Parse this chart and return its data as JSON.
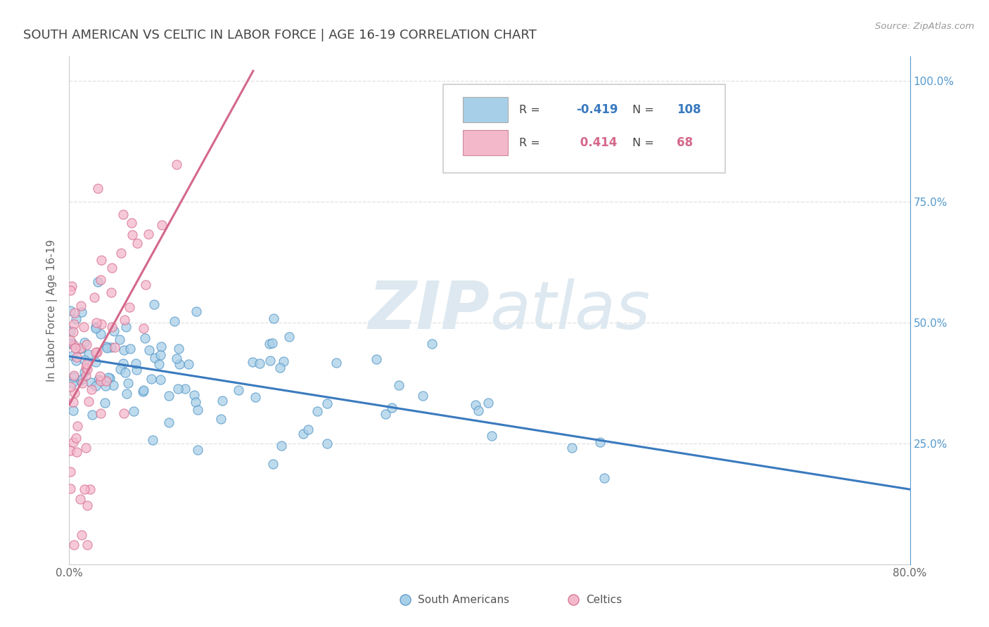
{
  "title": "SOUTH AMERICAN VS CELTIC IN LABOR FORCE | AGE 16-19 CORRELATION CHART",
  "source": "Source: ZipAtlas.com",
  "ylabel": "In Labor Force | Age 16-19",
  "xmin": 0.0,
  "xmax": 0.8,
  "ymin": 0.0,
  "ymax": 1.05,
  "south_american_R": -0.419,
  "south_american_N": 108,
  "celtic_R": 0.414,
  "celtic_N": 68,
  "blue_color": "#a8cfe8",
  "pink_color": "#f4b8cb",
  "blue_edge_color": "#4a90c4",
  "pink_edge_color": "#d4688a",
  "blue_line_color": "#3a7abf",
  "pink_line_color": "#d4688a",
  "legend_blue_color": "#a8cfe8",
  "legend_pink_color": "#f4b8cb",
  "watermark_color": "#dde8f0",
  "right_axis_color": "#5599cc",
  "background_color": "#ffffff",
  "grid_color": "#e0e0e0",
  "title_color": "#444444",
  "sa_trend_x0": 0.0,
  "sa_trend_y0": 0.43,
  "sa_trend_x1": 0.8,
  "sa_trend_y1": 0.155,
  "ce_trend_x0": 0.0,
  "ce_trend_y0": 0.33,
  "ce_trend_x1": 0.175,
  "ce_trend_y1": 1.02
}
